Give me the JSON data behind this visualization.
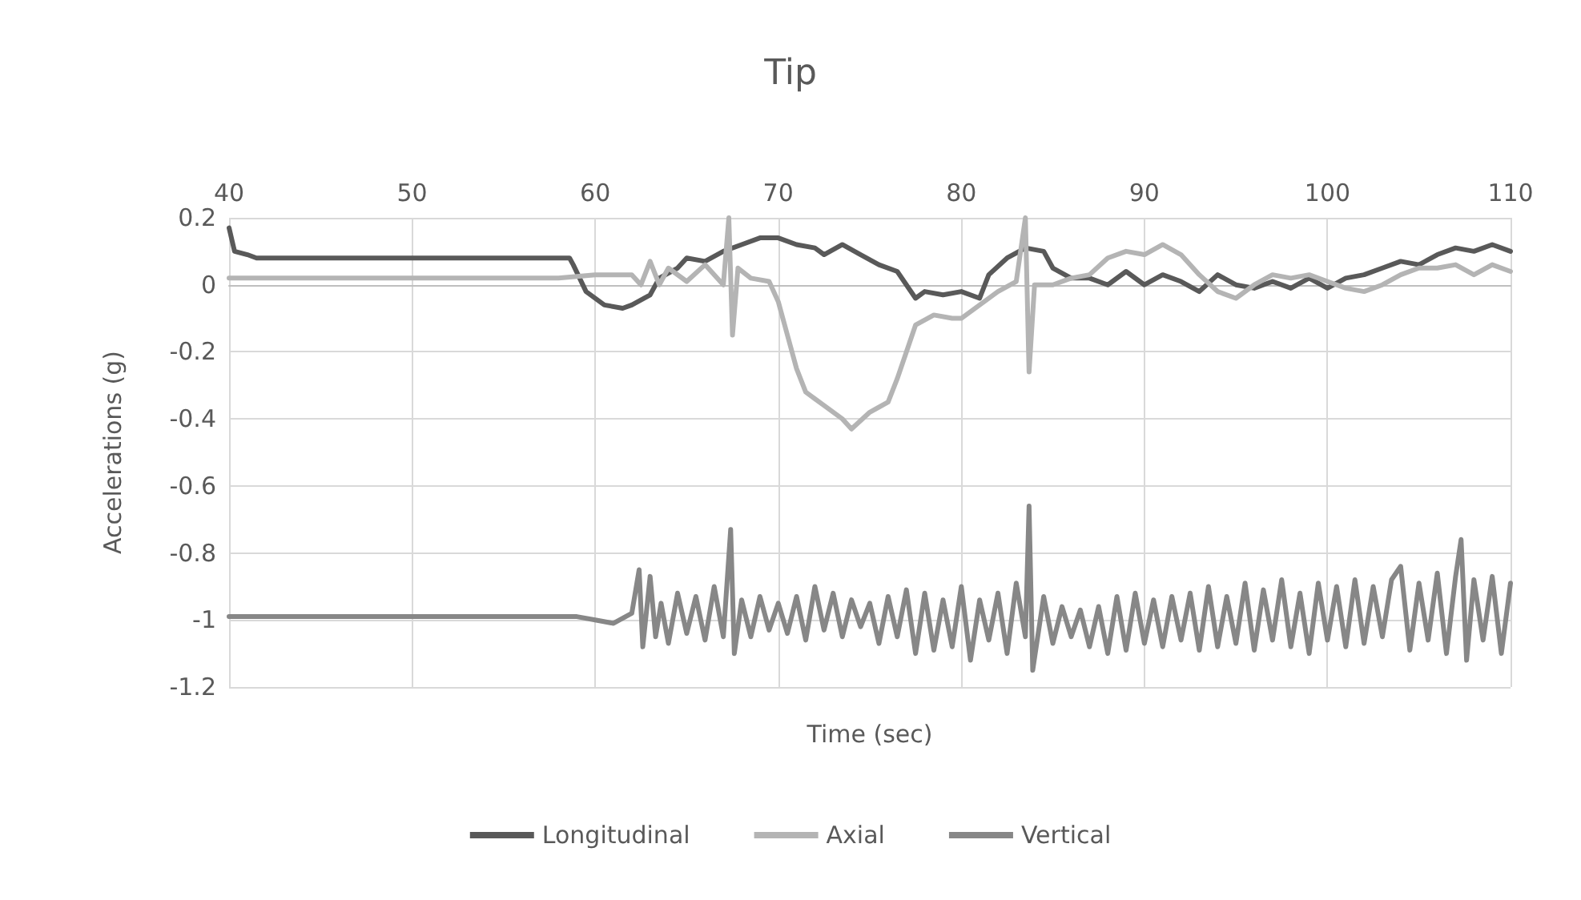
{
  "chart_data": {
    "type": "line",
    "title": "Tip",
    "xlabel": "Time (sec)",
    "ylabel": "Accelerations (g)",
    "xlim": [
      40,
      110
    ],
    "xticks": [
      40,
      50,
      60,
      70,
      80,
      90,
      100,
      110
    ],
    "ylim": [
      -1.2,
      0.2
    ],
    "yticks": [
      -1.2,
      -1,
      -0.8,
      -0.6,
      -0.4,
      -0.2,
      0,
      0.2
    ],
    "grid": true,
    "legend": "bottom",
    "marker": "none",
    "line_style": "solid",
    "series": [
      {
        "name": "Longitudinal",
        "color": "#595959",
        "x": [
          40,
          40.3,
          41,
          41.5,
          45,
          50,
          55,
          58.6,
          58.8,
          59.5,
          60.5,
          61.5,
          62,
          63,
          63.5,
          64.5,
          65,
          66,
          67,
          68,
          69,
          70,
          71,
          72,
          72.5,
          73.5,
          74.5,
          75.5,
          76.5,
          77,
          77.5,
          78,
          79,
          80,
          81,
          81.5,
          82.5,
          83.5,
          84.5,
          85,
          86,
          87,
          88,
          89,
          90,
          91,
          92,
          93,
          94,
          95,
          96,
          97,
          98,
          99,
          100,
          101,
          102,
          103,
          104,
          105,
          106,
          107,
          108,
          109,
          110
        ],
        "values": [
          0.17,
          0.1,
          0.09,
          0.08,
          0.08,
          0.08,
          0.08,
          0.08,
          0.06,
          -0.02,
          -0.06,
          -0.07,
          -0.06,
          -0.03,
          0.02,
          0.05,
          0.08,
          0.07,
          0.1,
          0.12,
          0.14,
          0.14,
          0.12,
          0.11,
          0.09,
          0.12,
          0.09,
          0.06,
          0.04,
          0,
          -0.04,
          -0.02,
          -0.03,
          -0.02,
          -0.04,
          0.03,
          0.08,
          0.11,
          0.1,
          0.05,
          0.02,
          0.02,
          0,
          0.04,
          0,
          0.03,
          0.01,
          -0.02,
          0.03,
          0,
          -0.01,
          0.01,
          -0.01,
          0.02,
          -0.01,
          0.02,
          0.03,
          0.05,
          0.07,
          0.06,
          0.09,
          0.11,
          0.1,
          0.12,
          0.1
        ]
      },
      {
        "name": "Axial",
        "color": "#b4b4b4",
        "x": [
          40,
          50,
          58,
          60,
          62,
          62.5,
          63,
          63.5,
          64,
          65,
          66,
          67,
          67.3,
          67.5,
          67.8,
          68.5,
          69.5,
          70,
          70.5,
          71,
          71.5,
          72.5,
          73.5,
          74,
          75,
          76,
          76.5,
          77,
          77.5,
          78.5,
          79.5,
          80,
          81,
          82,
          83,
          83.5,
          83.7,
          84,
          85,
          86,
          87,
          88,
          89,
          90,
          91,
          92,
          93,
          94,
          95,
          96,
          97,
          98,
          99,
          100,
          101,
          102,
          103,
          104,
          105,
          106,
          107,
          108,
          109,
          110
        ],
        "values": [
          0.02,
          0.02,
          0.02,
          0.03,
          0.03,
          0,
          0.07,
          0,
          0.05,
          0.01,
          0.06,
          0,
          0.2,
          -0.15,
          0.05,
          0.02,
          0.01,
          -0.05,
          -0.15,
          -0.25,
          -0.32,
          -0.36,
          -0.4,
          -0.43,
          -0.38,
          -0.35,
          -0.28,
          -0.2,
          -0.12,
          -0.09,
          -0.1,
          -0.1,
          -0.06,
          -0.02,
          0.01,
          0.2,
          -0.26,
          0,
          0,
          0.02,
          0.03,
          0.08,
          0.1,
          0.09,
          0.12,
          0.09,
          0.03,
          -0.02,
          -0.04,
          0,
          0.03,
          0.02,
          0.03,
          0.01,
          -0.01,
          -0.02,
          0,
          0.03,
          0.05,
          0.05,
          0.06,
          0.03,
          0.06,
          0.04
        ]
      },
      {
        "name": "Vertical",
        "color": "#878787",
        "x": [
          40,
          45,
          50,
          55,
          59,
          60,
          61,
          62,
          62.4,
          62.6,
          63,
          63.3,
          63.6,
          64,
          64.5,
          65,
          65.5,
          66,
          66.5,
          67,
          67.4,
          67.6,
          68,
          68.5,
          69,
          69.5,
          70,
          70.5,
          71,
          71.5,
          72,
          72.5,
          73,
          73.5,
          74,
          74.5,
          75,
          75.5,
          76,
          76.5,
          77,
          77.5,
          78,
          78.5,
          79,
          79.5,
          80,
          80.5,
          81,
          81.5,
          82,
          82.5,
          83,
          83.5,
          83.7,
          83.9,
          84.5,
          85,
          85.5,
          86,
          86.5,
          87,
          87.5,
          88,
          88.5,
          89,
          89.5,
          90,
          90.5,
          91,
          91.5,
          92,
          92.5,
          93,
          93.5,
          94,
          94.5,
          95,
          95.5,
          96,
          96.5,
          97,
          97.5,
          98,
          98.5,
          99,
          99.5,
          100,
          100.5,
          101,
          101.5,
          102,
          102.5,
          103,
          103.5,
          104,
          104.5,
          105,
          105.5,
          106,
          106.5,
          107,
          107.3,
          107.6,
          108,
          108.5,
          109,
          109.5,
          110
        ],
        "values": [
          -0.99,
          -0.99,
          -0.99,
          -0.99,
          -0.99,
          -1,
          -1.01,
          -0.98,
          -0.85,
          -1.08,
          -0.87,
          -1.05,
          -0.95,
          -1.07,
          -0.92,
          -1.04,
          -0.93,
          -1.06,
          -0.9,
          -1.05,
          -0.73,
          -1.1,
          -0.94,
          -1.05,
          -0.93,
          -1.03,
          -0.95,
          -1.04,
          -0.93,
          -1.06,
          -0.9,
          -1.03,
          -0.92,
          -1.05,
          -0.94,
          -1.02,
          -0.95,
          -1.07,
          -0.93,
          -1.05,
          -0.91,
          -1.1,
          -0.92,
          -1.09,
          -0.94,
          -1.08,
          -0.9,
          -1.12,
          -0.94,
          -1.06,
          -0.92,
          -1.1,
          -0.89,
          -1.05,
          -0.66,
          -1.15,
          -0.93,
          -1.07,
          -0.96,
          -1.05,
          -0.97,
          -1.08,
          -0.96,
          -1.1,
          -0.93,
          -1.09,
          -0.92,
          -1.07,
          -0.94,
          -1.08,
          -0.93,
          -1.06,
          -0.92,
          -1.09,
          -0.9,
          -1.08,
          -0.93,
          -1.07,
          -0.89,
          -1.09,
          -0.91,
          -1.06,
          -0.88,
          -1.08,
          -0.92,
          -1.1,
          -0.89,
          -1.06,
          -0.9,
          -1.08,
          -0.88,
          -1.07,
          -0.9,
          -1.05,
          -0.88,
          -0.84,
          -1.09,
          -0.89,
          -1.06,
          -0.86,
          -1.1,
          -0.87,
          -0.76,
          -1.12,
          -0.88,
          -1.06,
          -0.87,
          -1.1,
          -0.89
        ]
      }
    ]
  }
}
